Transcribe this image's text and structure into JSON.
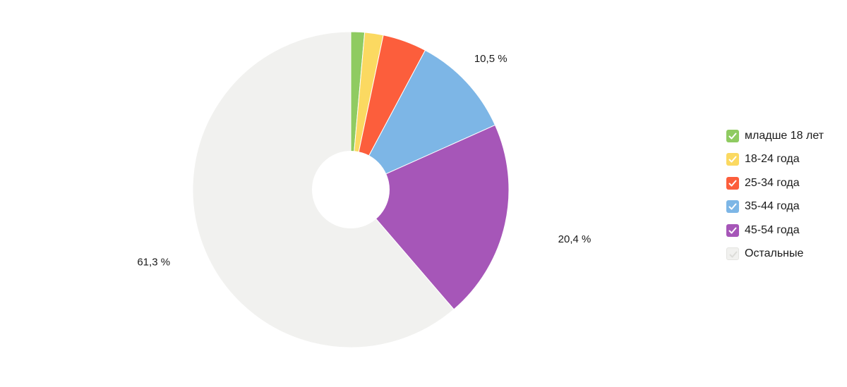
{
  "chart_data": {
    "type": "pie",
    "title": "",
    "categories": [
      "младше 18 лет",
      "18-24 года",
      "25-34 года",
      "35-44 года",
      "45-54 года",
      "Остальные"
    ],
    "values": [
      1.4,
      1.9,
      4.5,
      10.5,
      20.4,
      61.3
    ],
    "colors": [
      "#8fcb61",
      "#fbd961",
      "#fc5e3c",
      "#7db6e6",
      "#a656b8",
      "#f1f1ef"
    ],
    "data_labels": [
      "",
      "",
      "",
      "10,5 %",
      "20,4 %",
      "61,3 %"
    ],
    "start_angle_deg": 0,
    "direction": "clockwise",
    "donut_hole": true,
    "legend_placement": "right",
    "legend_checked": [
      true,
      true,
      true,
      true,
      true,
      false
    ]
  },
  "legend": {
    "items": [
      {
        "label": "младше 18 лет"
      },
      {
        "label": "18-24 года"
      },
      {
        "label": "25-34 года"
      },
      {
        "label": "35-44 года"
      },
      {
        "label": "45-54 года"
      },
      {
        "label": "Остальные"
      }
    ]
  }
}
